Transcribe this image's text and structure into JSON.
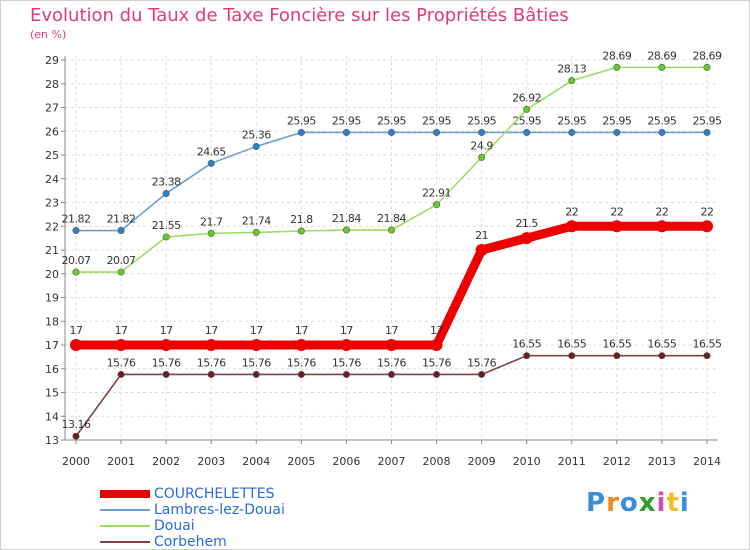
{
  "chart_data": {
    "type": "line",
    "title": "Evolution du Taux de Taxe Foncière sur les Propriétés Bâties",
    "subtitle": "(en %)",
    "x": [
      "2000",
      "2001",
      "2002",
      "2003",
      "2004",
      "2005",
      "2006",
      "2007",
      "2008",
      "2009",
      "2010",
      "2011",
      "2012",
      "2013",
      "2014"
    ],
    "ylim": [
      13,
      29
    ],
    "yticks": [
      "13",
      "14",
      "15",
      "16",
      "17",
      "18",
      "19",
      "20",
      "21",
      "22",
      "23",
      "24",
      "25",
      "26",
      "27",
      "28",
      "29"
    ],
    "series": [
      {
        "name": "COURCHELETTES",
        "color": "#ee0000",
        "values": [
          17,
          17,
          17,
          17,
          17,
          17,
          17,
          17,
          17,
          21,
          21.5,
          22,
          22,
          22,
          22
        ],
        "labels": [
          "17",
          "17",
          "17",
          "17",
          "17",
          "17",
          "17",
          "17",
          "17",
          "21",
          "21.5",
          "22",
          "22",
          "22",
          "22"
        ]
      },
      {
        "name": "Lambres-lez-Douai",
        "color": "#6b9fd4",
        "marker": "#2f7fcf",
        "values": [
          21.82,
          21.82,
          23.38,
          24.65,
          25.36,
          25.95,
          25.95,
          25.95,
          25.95,
          25.95,
          25.95,
          25.95,
          25.95,
          25.95,
          25.95
        ],
        "labels": [
          "21.82",
          "21.82",
          "23.38",
          "24.65",
          "25.36",
          "25.95",
          "25.95",
          "25.95",
          "25.95",
          "25.95",
          "25.95",
          "25.95",
          "25.95",
          "25.95",
          "25.95"
        ]
      },
      {
        "name": "Douai",
        "color": "#99dd66",
        "marker": "#66cc22",
        "values": [
          20.07,
          20.07,
          21.55,
          21.7,
          21.74,
          21.8,
          21.84,
          21.84,
          22.91,
          24.9,
          26.92,
          28.13,
          28.69,
          28.69,
          28.69
        ],
        "labels": [
          "20.07",
          "20.07",
          "21.55",
          "21.7",
          "21.74",
          "21.8",
          "21.84",
          "21.84",
          "22.91",
          "24.9",
          "26.92",
          "28.13",
          "28.69",
          "28.69",
          "28.69"
        ]
      },
      {
        "name": "Corbehem",
        "color": "#804040",
        "marker": "#6e1f1f",
        "values": [
          13.16,
          15.76,
          15.76,
          15.76,
          15.76,
          15.76,
          15.76,
          15.76,
          15.76,
          15.76,
          16.55,
          16.55,
          16.55,
          16.55,
          16.55
        ],
        "labels": [
          "13.16",
          "15.76",
          "15.76",
          "15.76",
          "15.76",
          "15.76",
          "15.76",
          "15.76",
          "15.76",
          "15.76",
          "16.55",
          "16.55",
          "16.55",
          "16.55",
          "16.55"
        ]
      }
    ],
    "grid": true,
    "legend": "bottom-left"
  },
  "logo": {
    "letters": [
      "P",
      "r",
      "o",
      "x",
      "i",
      "t",
      "i"
    ],
    "colors": [
      "#3a8ed8",
      "#f08a1c",
      "#3a8ed8",
      "#2f9e2f",
      "#d84fa8",
      "#f0c020",
      "#3a8ed8"
    ]
  }
}
